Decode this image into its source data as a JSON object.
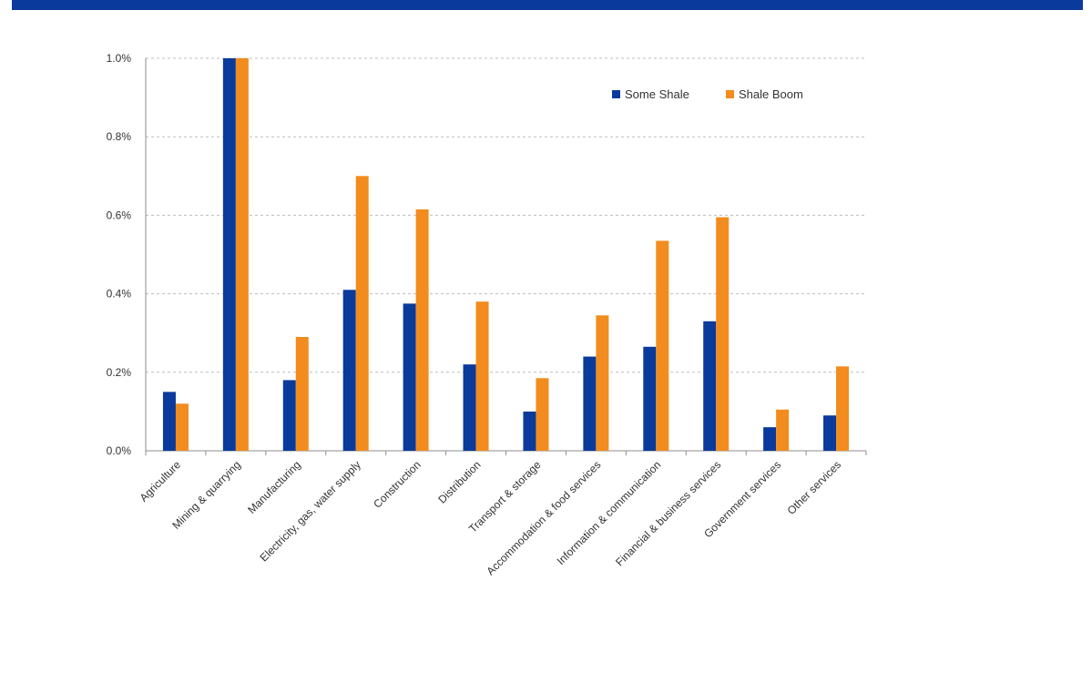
{
  "chart_data": {
    "type": "bar",
    "title": "",
    "xlabel": "",
    "ylabel": "",
    "ylim": [
      0,
      1.0
    ],
    "yticks": [
      "0.0%",
      "0.2%",
      "0.4%",
      "0.6%",
      "0.8%",
      "1.0%"
    ],
    "grid": "horizontal dashed",
    "legend_position": "top-right",
    "categories": [
      "Agriculture",
      "Mining & quarrying",
      "Manufacturing",
      "Electricity, gas, water supply",
      "Construction",
      "Distribution",
      "Transport & storage",
      "Accommodation & food services",
      "Information & communication",
      "Financial & business services",
      "Government services",
      "Other services"
    ],
    "series": [
      {
        "name": "Some Shale",
        "color": "#0a3a9c",
        "values": [
          0.15,
          1.0,
          0.18,
          0.41,
          0.375,
          0.22,
          0.1,
          0.24,
          0.265,
          0.33,
          0.06,
          0.09
        ]
      },
      {
        "name": "Shale Boom",
        "color": "#f28c1e",
        "values": [
          0.12,
          1.0,
          0.29,
          0.7,
          0.615,
          0.38,
          0.185,
          0.345,
          0.535,
          0.595,
          0.105,
          0.215
        ]
      }
    ]
  },
  "header": {
    "bar_color": "#0a3a9c"
  }
}
